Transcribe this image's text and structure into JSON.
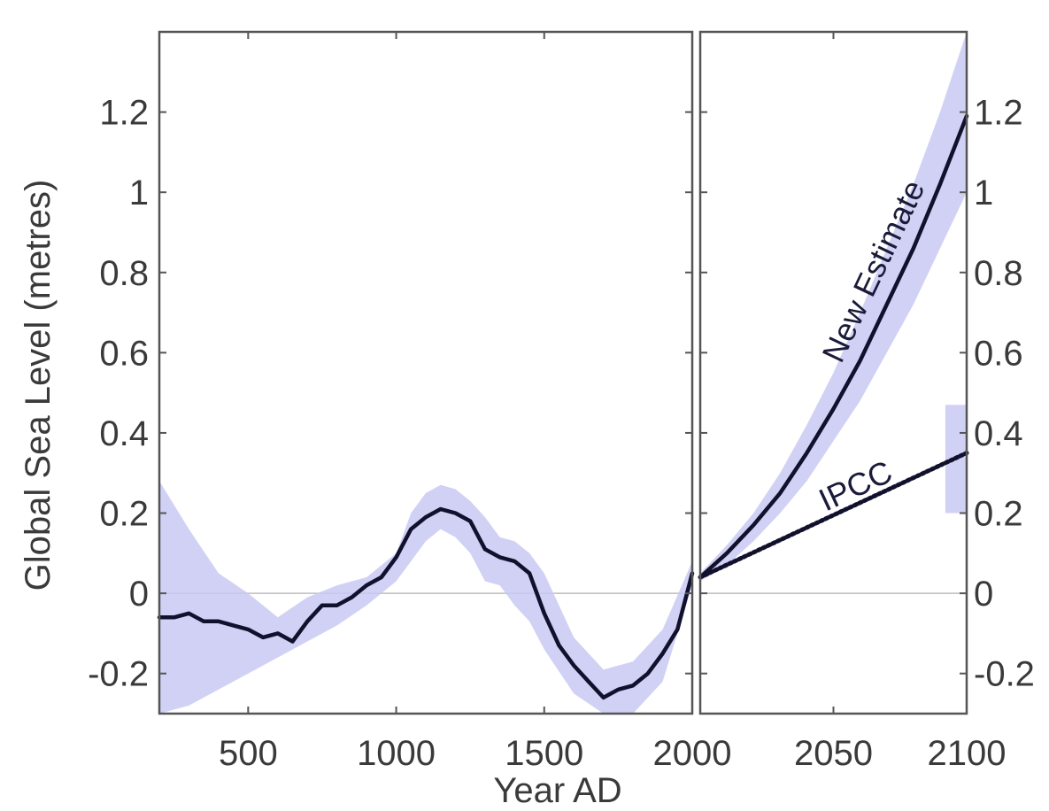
{
  "chart_data": {
    "type": "line",
    "xlabel": "Year AD",
    "ylabel": "Global Sea Level (metres)",
    "ylim": [
      -0.3,
      1.4
    ],
    "colors": {
      "line": "#11112e",
      "band": "#c9c9f3",
      "zero_line": "#bdbdbd",
      "axes": "#555555"
    },
    "panels": [
      {
        "name": "historical",
        "xlim": [
          200,
          2000
        ],
        "x_ticks": [
          500,
          1000,
          1500,
          2000
        ],
        "y_ticks": [
          -0.2,
          0,
          0.2,
          0.4,
          0.6,
          0.8,
          1,
          1.2
        ],
        "y_tick_labels": [
          "-0.2",
          "0",
          "0.2",
          "0.4",
          "0.6",
          "0.8",
          "1",
          "1.2"
        ],
        "y_axis_labels_side": "left",
        "series": [
          {
            "x": [
              200,
              250,
              300,
              350,
              400,
              450,
              500,
              550,
              600,
              650,
              700,
              750,
              800,
              850,
              900,
              950,
              1000,
              1050,
              1100,
              1150,
              1200,
              1250,
              1300,
              1350,
              1400,
              1450,
              1500,
              1550,
              1600,
              1650,
              1700,
              1750,
              1800,
              1850,
              1900,
              1950,
              2000
            ],
            "y": [
              -0.06,
              -0.06,
              -0.05,
              -0.07,
              -0.07,
              -0.08,
              -0.09,
              -0.11,
              -0.1,
              -0.12,
              -0.07,
              -0.03,
              -0.03,
              -0.01,
              0.02,
              0.04,
              0.09,
              0.16,
              0.19,
              0.21,
              0.2,
              0.18,
              0.11,
              0.09,
              0.08,
              0.05,
              -0.05,
              -0.13,
              -0.18,
              -0.22,
              -0.26,
              -0.24,
              -0.23,
              -0.2,
              -0.15,
              -0.09,
              0.05
            ]
          }
        ],
        "band": {
          "x": [
            200,
            300,
            400,
            500,
            600,
            700,
            800,
            900,
            1000,
            1050,
            1100,
            1150,
            1200,
            1250,
            1300,
            1350,
            1400,
            1450,
            1500,
            1600,
            1700,
            1800,
            1900,
            2000
          ],
          "lower": [
            -0.3,
            -0.28,
            -0.24,
            -0.2,
            -0.16,
            -0.12,
            -0.08,
            -0.03,
            0.03,
            0.08,
            0.13,
            0.16,
            0.14,
            0.1,
            0.03,
            0.02,
            -0.03,
            -0.07,
            -0.14,
            -0.25,
            -0.3,
            -0.3,
            -0.22,
            0.02
          ],
          "upper": [
            0.28,
            0.16,
            0.05,
            0.0,
            -0.06,
            -0.01,
            0.02,
            0.04,
            0.1,
            0.2,
            0.25,
            0.27,
            0.26,
            0.23,
            0.19,
            0.14,
            0.13,
            0.1,
            0.05,
            -0.11,
            -0.19,
            -0.17,
            -0.09,
            0.08
          ]
        }
      },
      {
        "name": "projection",
        "xlim": [
          2000,
          2100
        ],
        "x_ticks": [
          2000,
          2050,
          2100
        ],
        "x_tick_labels_shown": [
          "2050",
          "2100"
        ],
        "y_ticks": [
          -0.2,
          0,
          0.2,
          0.4,
          0.6,
          0.8,
          1,
          1.2
        ],
        "y_tick_labels": [
          "-0.2",
          "0",
          "0.2",
          "0.4",
          "0.6",
          "0.8",
          "1",
          "1.2"
        ],
        "y_axis_labels_side": "right",
        "series": [
          {
            "label": "New Estimate",
            "style": "solid",
            "x": [
              2000,
              2010,
              2020,
              2030,
              2040,
              2050,
              2060,
              2070,
              2080,
              2090,
              2100
            ],
            "y": [
              0.04,
              0.1,
              0.17,
              0.25,
              0.35,
              0.46,
              0.58,
              0.72,
              0.86,
              1.02,
              1.19
            ]
          },
          {
            "label": "IPCC",
            "style": "dotted",
            "x": [
              2000,
              2100
            ],
            "y": [
              0.04,
              0.35
            ]
          }
        ],
        "bands": [
          {
            "x": [
              2000,
              2010,
              2020,
              2030,
              2040,
              2050,
              2060,
              2070,
              2080,
              2090,
              2100
            ],
            "lower": [
              0.03,
              0.07,
              0.13,
              0.2,
              0.28,
              0.38,
              0.48,
              0.6,
              0.72,
              0.86,
              1.0
            ],
            "upper": [
              0.05,
              0.12,
              0.2,
              0.3,
              0.42,
              0.55,
              0.7,
              0.86,
              1.02,
              1.2,
              1.4
            ]
          },
          {
            "x": [
              2092,
              2100
            ],
            "lower": [
              0.2,
              0.2
            ],
            "upper": [
              0.47,
              0.47
            ]
          }
        ]
      }
    ]
  }
}
